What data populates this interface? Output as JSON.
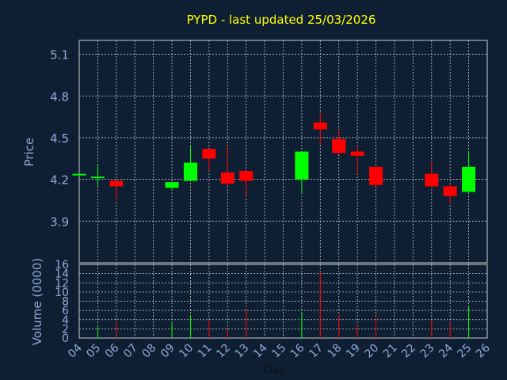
{
  "chart_data": {
    "type": "candlestick",
    "title": "PYPD - last updated 25/03/2026",
    "xlabel": "Day",
    "price_ylabel": "Price",
    "volume_ylabel": "Volume (0000)",
    "x_ticks": [
      "04",
      "05",
      "06",
      "07",
      "08",
      "09",
      "10",
      "11",
      "12",
      "13",
      "14",
      "15",
      "16",
      "17",
      "18",
      "19",
      "20",
      "21",
      "22",
      "23",
      "24",
      "25",
      "26"
    ],
    "price_ticks": [
      "5.1",
      "4.8",
      "4.5",
      "4.2",
      "3.9"
    ],
    "price_tick_values": [
      5.1,
      4.8,
      4.5,
      4.2,
      3.9
    ],
    "price_ylim": [
      3.6,
      5.2
    ],
    "volume_ticks": [
      "16",
      "14",
      "12",
      "10",
      "8",
      "6",
      "4",
      "2",
      "0"
    ],
    "volume_tick_values": [
      16,
      14,
      12,
      10,
      8,
      6,
      4,
      2,
      0
    ],
    "volume_ylim": [
      0,
      16
    ],
    "xlim": [
      4,
      26
    ],
    "grid": true,
    "colors": {
      "up": "#00ff00",
      "down": "#ff0000",
      "title": "#ffff00",
      "axis_text": "#8fa8d8",
      "background": "#0f1f33",
      "grid": "#c8c8c8"
    },
    "candles": [
      {
        "day": 4,
        "open": 4.24,
        "high": 4.24,
        "low": 4.24,
        "close": 4.24,
        "volume": 0
      },
      {
        "day": 5,
        "open": 4.22,
        "high": 4.3,
        "low": 4.15,
        "close": 4.22,
        "volume": 2.5
      },
      {
        "day": 6,
        "open": 4.19,
        "high": 4.19,
        "low": 4.05,
        "close": 4.15,
        "volume": 3.5
      },
      {
        "day": 9,
        "open": 4.14,
        "high": 4.18,
        "low": 4.12,
        "close": 4.18,
        "volume": 3.5
      },
      {
        "day": 10,
        "open": 4.19,
        "high": 4.44,
        "low": 4.19,
        "close": 4.32,
        "volume": 5.0
      },
      {
        "day": 11,
        "open": 4.42,
        "high": 4.42,
        "low": 4.26,
        "close": 4.35,
        "volume": 4.0
      },
      {
        "day": 12,
        "open": 4.25,
        "high": 4.44,
        "low": 4.15,
        "close": 4.17,
        "volume": 2.0
      },
      {
        "day": 13,
        "open": 4.26,
        "high": 4.26,
        "low": 4.07,
        "close": 4.19,
        "volume": 6.5
      },
      {
        "day": 16,
        "open": 4.2,
        "high": 4.4,
        "low": 4.1,
        "close": 4.4,
        "volume": 5.5
      },
      {
        "day": 17,
        "open": 4.61,
        "high": 4.68,
        "low": 4.45,
        "close": 4.56,
        "volume": 14.5
      },
      {
        "day": 18,
        "open": 4.49,
        "high": 4.56,
        "low": 4.38,
        "close": 4.39,
        "volume": 5.0
      },
      {
        "day": 19,
        "open": 4.4,
        "high": 4.44,
        "low": 4.24,
        "close": 4.37,
        "volume": 3.0
      },
      {
        "day": 20,
        "open": 4.29,
        "high": 4.29,
        "low": 4.15,
        "close": 4.16,
        "volume": 4.5
      },
      {
        "day": 23,
        "open": 4.24,
        "high": 4.33,
        "low": 4.14,
        "close": 4.15,
        "volume": 4.0
      },
      {
        "day": 24,
        "open": 4.15,
        "high": 4.17,
        "low": 4.03,
        "close": 4.08,
        "volume": 3.5
      },
      {
        "day": 25,
        "open": 4.11,
        "high": 4.4,
        "low": 4.11,
        "close": 4.29,
        "volume": 7.0
      }
    ]
  }
}
